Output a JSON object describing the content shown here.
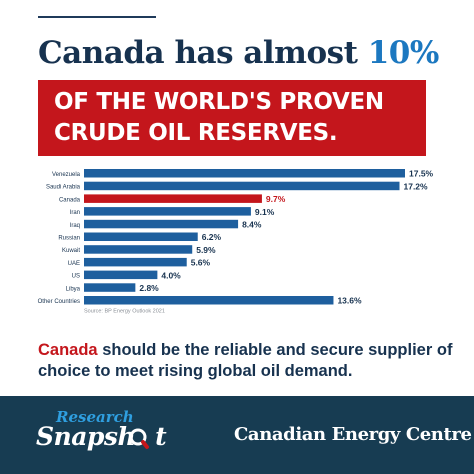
{
  "headline": {
    "text": "Canada has almost",
    "highlight": "10%"
  },
  "banner": {
    "line1": "OF THE WORLD'S PROVEN",
    "line2": "CRUDE OIL RESERVES."
  },
  "chart_data": {
    "type": "bar",
    "orientation": "horizontal",
    "categories": [
      "Venezuela",
      "Saudi Arabia",
      "Canada",
      "Iran",
      "Iraq",
      "Russian",
      "Kuwait",
      "UAE",
      "US",
      "Libya",
      "Other Countries"
    ],
    "values": [
      17.5,
      17.2,
      9.7,
      9.1,
      8.4,
      6.2,
      5.9,
      5.6,
      4.0,
      2.8,
      13.6
    ],
    "value_labels": [
      "17.5%",
      "17.2%",
      "9.7%",
      "9.1%",
      "8.4%",
      "6.2%",
      "5.9%",
      "5.6%",
      "4.0%",
      "2.8%",
      "13.6%"
    ],
    "highlight_category": "Canada",
    "colors": {
      "default": "#1e5f9e",
      "highlight": "#c4161c",
      "label": "#17324f"
    },
    "xlim": [
      0,
      17.5
    ],
    "grid": false,
    "source": "Source: BP Energy Outlook 2021"
  },
  "caption": {
    "highlight": "Canada",
    "text": " should be the reliable and secure supplier of choice to meet rising global oil demand."
  },
  "footer": {
    "research": "Research",
    "snapshot": "Snapsh",
    "snapshot_end": "t",
    "org": "Canadian Energy Centre",
    "icon": "magnifier-icon"
  }
}
